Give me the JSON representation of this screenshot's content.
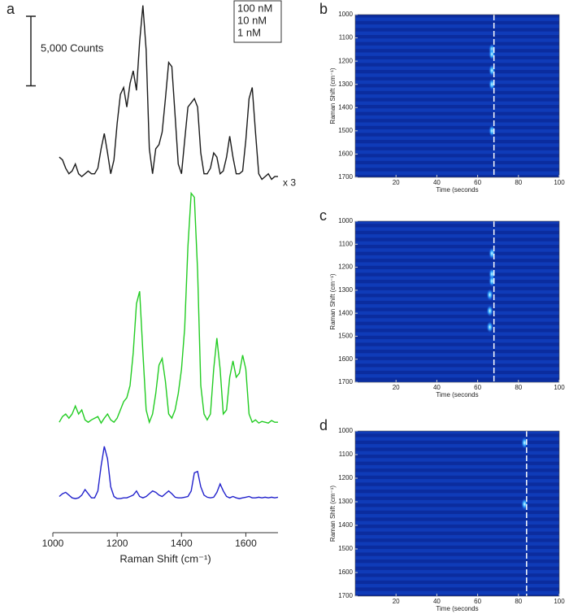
{
  "chart_data": [
    {
      "type": "line",
      "panel_label": "a",
      "xlabel": "Raman Shift (cm⁻¹)",
      "xlim": [
        1000,
        1700
      ],
      "xticks": [
        1000,
        1200,
        1400,
        1600
      ],
      "ylim": [
        0,
        38000
      ],
      "scale_bar": {
        "value": 5000,
        "label": "5,000 Counts"
      },
      "annotation": "x 3",
      "x": [
        1020,
        1030,
        1040,
        1050,
        1060,
        1070,
        1080,
        1090,
        1100,
        1110,
        1120,
        1130,
        1140,
        1150,
        1160,
        1170,
        1180,
        1190,
        1200,
        1210,
        1220,
        1230,
        1240,
        1250,
        1260,
        1270,
        1280,
        1290,
        1300,
        1310,
        1320,
        1330,
        1340,
        1350,
        1360,
        1370,
        1380,
        1390,
        1400,
        1410,
        1420,
        1430,
        1440,
        1450,
        1460,
        1470,
        1480,
        1490,
        1500,
        1510,
        1520,
        1530,
        1540,
        1550,
        1560,
        1570,
        1580,
        1590,
        1600,
        1610,
        1620,
        1630,
        1640,
        1650,
        1660,
        1670,
        1680,
        1690,
        1700
      ],
      "series": [
        {
          "name": "100 nM",
          "color": "#1a1a1a",
          "legend_color": "#7a1f1f",
          "values": [
            27000,
            26800,
            26200,
            25800,
            26000,
            26500,
            25800,
            25600,
            25800,
            26000,
            25800,
            25800,
            26200,
            27600,
            28700,
            27300,
            25800,
            26800,
            29400,
            31500,
            32000,
            30600,
            32300,
            33200,
            31800,
            35300,
            37900,
            34700,
            27600,
            25800,
            27600,
            27900,
            28800,
            31200,
            33800,
            33500,
            30000,
            26500,
            25800,
            28200,
            30600,
            30900,
            31200,
            30600,
            27300,
            25800,
            25800,
            26200,
            27300,
            27000,
            25800,
            26000,
            27000,
            28500,
            27000,
            25800,
            25800,
            26000,
            28200,
            31200,
            32000,
            28800,
            25800,
            25400,
            25600,
            25800,
            25400,
            25600,
            25600
          ]
        },
        {
          "name": "10 nM",
          "color": "#22cc22",
          "legend_color": "#22cc22",
          "values": [
            7940,
            8350,
            8530,
            8230,
            8530,
            9110,
            8530,
            8820,
            8110,
            7940,
            8110,
            8230,
            8350,
            7880,
            8230,
            8530,
            8110,
            7940,
            8230,
            8820,
            9410,
            9700,
            10580,
            12940,
            16460,
            17350,
            12940,
            8820,
            7940,
            8530,
            10000,
            12050,
            12520,
            10880,
            8530,
            8230,
            8820,
            10000,
            11760,
            14700,
            20580,
            24400,
            24110,
            18820,
            10580,
            8530,
            8110,
            8530,
            11760,
            13990,
            11760,
            8530,
            8820,
            11170,
            12350,
            11170,
            11470,
            12760,
            11760,
            8530,
            7940,
            8110,
            7880,
            8000,
            7940,
            7880,
            8060,
            7940,
            7940
          ]
        },
        {
          "name": "1 nM",
          "color": "#2222cc",
          "legend_color": "#2222cc",
          "values": [
            2600,
            2800,
            2900,
            2700,
            2500,
            2450,
            2500,
            2700,
            3100,
            2800,
            2500,
            2500,
            3000,
            4800,
            6200,
            5300,
            3300,
            2600,
            2450,
            2450,
            2500,
            2500,
            2600,
            2700,
            3000,
            2600,
            2500,
            2600,
            2800,
            3000,
            2900,
            2700,
            2600,
            2800,
            3000,
            2800,
            2550,
            2500,
            2500,
            2550,
            2600,
            3000,
            4300,
            4400,
            3300,
            2700,
            2550,
            2500,
            2550,
            2900,
            3500,
            3000,
            2600,
            2500,
            2600,
            2500,
            2450,
            2500,
            2550,
            2600,
            2500,
            2500,
            2550,
            2500,
            2550,
            2500,
            2550,
            2500,
            2550
          ]
        }
      ]
    },
    {
      "type": "heatmap",
      "panel_label": "b",
      "xlabel": "Time (seconds",
      "ylabel": "Raman Shift (cm⁻¹)",
      "xlim": [
        0,
        100
      ],
      "xticks": [
        20,
        40,
        60,
        80,
        100
      ],
      "ylim": [
        1700,
        1000
      ],
      "yticks": [
        1000,
        1100,
        1200,
        1300,
        1400,
        1500,
        1600,
        1700
      ],
      "marker_x": 68,
      "spots_x": [
        67,
        67,
        67,
        67,
        67
      ],
      "spots_y": [
        1150,
        1170,
        1240,
        1300,
        1500
      ]
    },
    {
      "type": "heatmap",
      "panel_label": "c",
      "xlabel": "Time (seconds",
      "ylabel": "Raman Shift (cm⁻¹)",
      "xlim": [
        0,
        100
      ],
      "xticks": [
        20,
        40,
        60,
        80,
        100
      ],
      "ylim": [
        1700,
        1000
      ],
      "yticks": [
        1000,
        1100,
        1200,
        1300,
        1400,
        1500,
        1600,
        1700
      ],
      "marker_x": 68,
      "spots_x": [
        67,
        67,
        67,
        66,
        66,
        66
      ],
      "spots_y": [
        1140,
        1230,
        1260,
        1320,
        1390,
        1460
      ]
    },
    {
      "type": "heatmap",
      "panel_label": "d",
      "xlabel": "Time (seconds",
      "ylabel": "Raman Shift (cm⁻¹)",
      "xlim": [
        0,
        100
      ],
      "xticks": [
        20,
        40,
        60,
        80,
        100
      ],
      "ylim": [
        1700,
        1000
      ],
      "yticks": [
        1000,
        1100,
        1200,
        1300,
        1400,
        1500,
        1600,
        1700
      ],
      "marker_x": 84,
      "spots_x": [
        83,
        83
      ],
      "spots_y": [
        1050,
        1310
      ]
    }
  ]
}
